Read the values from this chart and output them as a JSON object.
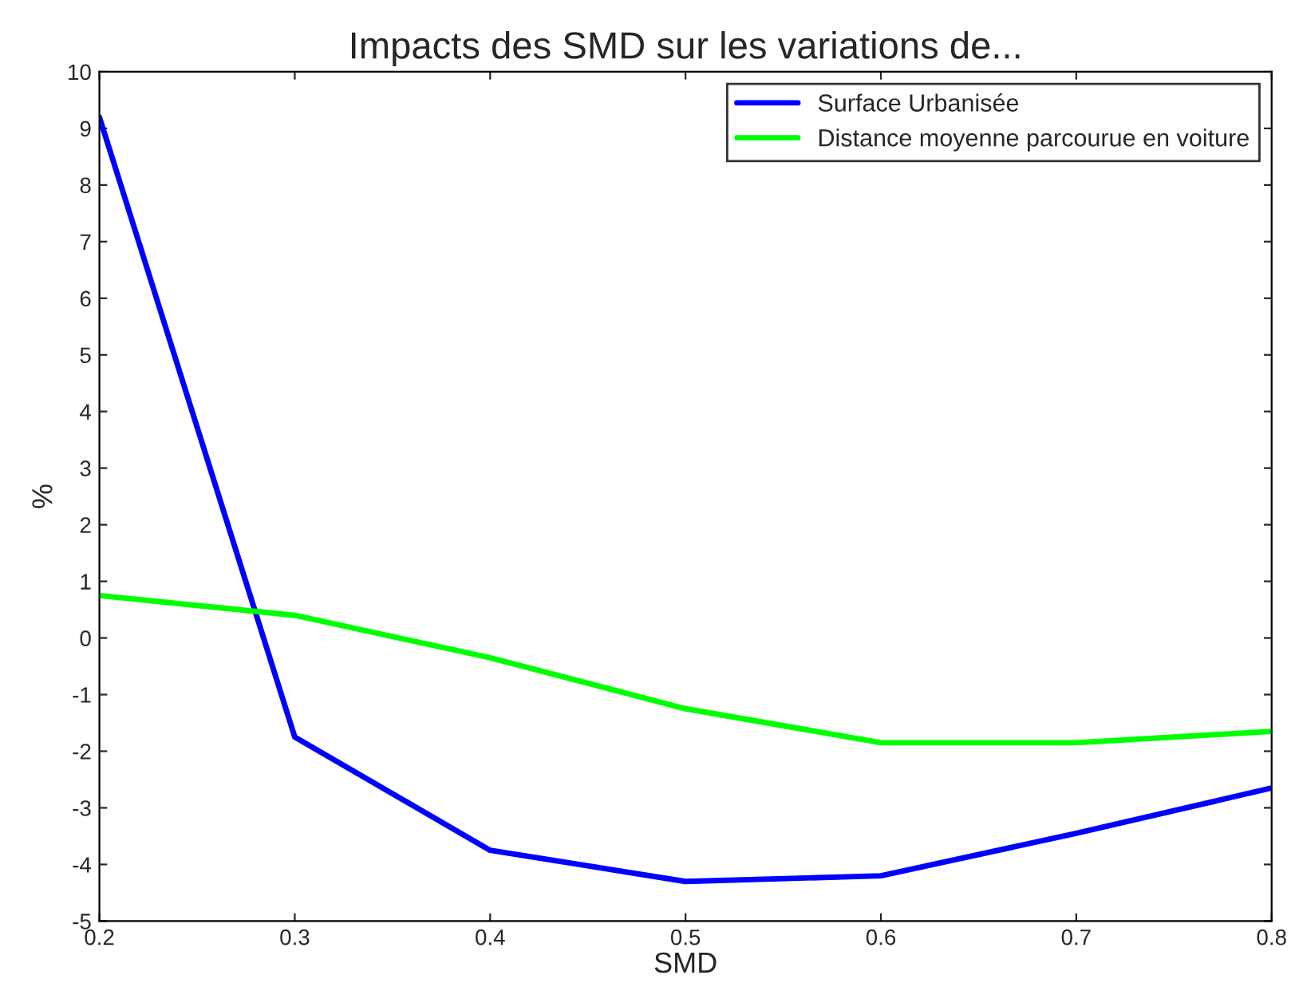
{
  "chart_data": {
    "type": "line",
    "title": "Impacts des SMD sur les variations de...",
    "xlabel": "SMD",
    "ylabel": "%",
    "x": [
      0.2,
      0.3,
      0.4,
      0.5,
      0.6,
      0.7,
      0.8
    ],
    "series": [
      {
        "name": "Surface Urbanisée",
        "color": "#0000ff",
        "values": [
          9.2,
          -1.75,
          -3.75,
          -4.3,
          -4.2,
          -3.45,
          -2.65
        ]
      },
      {
        "name": "Distance moyenne parcourue en voiture",
        "color": "#00ff00",
        "values": [
          0.75,
          0.4,
          -0.35,
          -1.25,
          -1.85,
          -1.85,
          -1.65
        ]
      }
    ],
    "xlim": [
      0.2,
      0.8
    ],
    "xticks": [
      0.2,
      0.3,
      0.4,
      0.5,
      0.6,
      0.7,
      0.8
    ],
    "ylim": [
      -5,
      10
    ],
    "yticks": [
      -5,
      -4,
      -3,
      -2,
      -1,
      0,
      1,
      2,
      3,
      4,
      5,
      6,
      7,
      8,
      9,
      10
    ],
    "grid": false,
    "legend": "top right",
    "marker": "none",
    "line_style": "solid"
  }
}
